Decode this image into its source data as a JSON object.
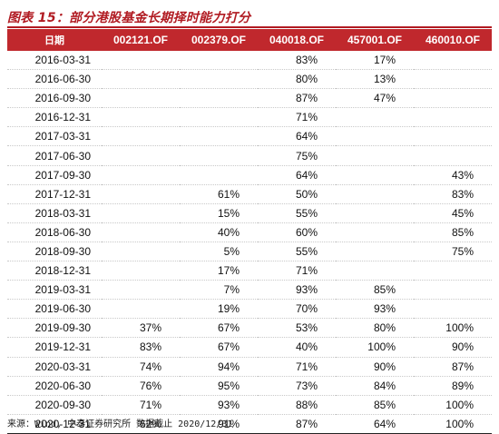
{
  "title": "图表 15：部分港股基金长期择时能力打分",
  "columns": [
    "日期",
    "002121.OF",
    "002379.OF",
    "040018.OF",
    "457001.OF",
    "460010.OF"
  ],
  "rows": [
    [
      "2016-03-31",
      "",
      "",
      "83%",
      "17%",
      ""
    ],
    [
      "2016-06-30",
      "",
      "",
      "80%",
      "13%",
      ""
    ],
    [
      "2016-09-30",
      "",
      "",
      "87%",
      "47%",
      ""
    ],
    [
      "2016-12-31",
      "",
      "",
      "71%",
      "",
      ""
    ],
    [
      "2017-03-31",
      "",
      "",
      "64%",
      "",
      ""
    ],
    [
      "2017-06-30",
      "",
      "",
      "75%",
      "",
      ""
    ],
    [
      "2017-09-30",
      "",
      "",
      "64%",
      "",
      "43%"
    ],
    [
      "2017-12-31",
      "",
      "61%",
      "50%",
      "",
      "83%"
    ],
    [
      "2018-03-31",
      "",
      "15%",
      "55%",
      "",
      "45%"
    ],
    [
      "2018-06-30",
      "",
      "40%",
      "60%",
      "",
      "85%"
    ],
    [
      "2018-09-30",
      "",
      "5%",
      "55%",
      "",
      "75%"
    ],
    [
      "2018-12-31",
      "",
      "17%",
      "71%",
      "",
      ""
    ],
    [
      "2019-03-31",
      "",
      "7%",
      "93%",
      "85%",
      ""
    ],
    [
      "2019-06-30",
      "",
      "19%",
      "70%",
      "93%",
      ""
    ],
    [
      "2019-09-30",
      "37%",
      "67%",
      "53%",
      "80%",
      "100%"
    ],
    [
      "2019-12-31",
      "83%",
      "67%",
      "40%",
      "100%",
      "90%"
    ],
    [
      "2020-03-31",
      "74%",
      "94%",
      "71%",
      "90%",
      "87%"
    ],
    [
      "2020-06-30",
      "76%",
      "95%",
      "73%",
      "84%",
      "89%"
    ],
    [
      "2020-09-30",
      "71%",
      "93%",
      "88%",
      "85%",
      "100%"
    ],
    [
      "2020-12-31",
      "62%",
      "91%",
      "87%",
      "64%",
      "100%"
    ]
  ],
  "source": "来源：Wind, 中泰证券研究所 数据截止 2020/12/31",
  "colors": {
    "accent": "#c0282d",
    "title": "#b11b22"
  }
}
